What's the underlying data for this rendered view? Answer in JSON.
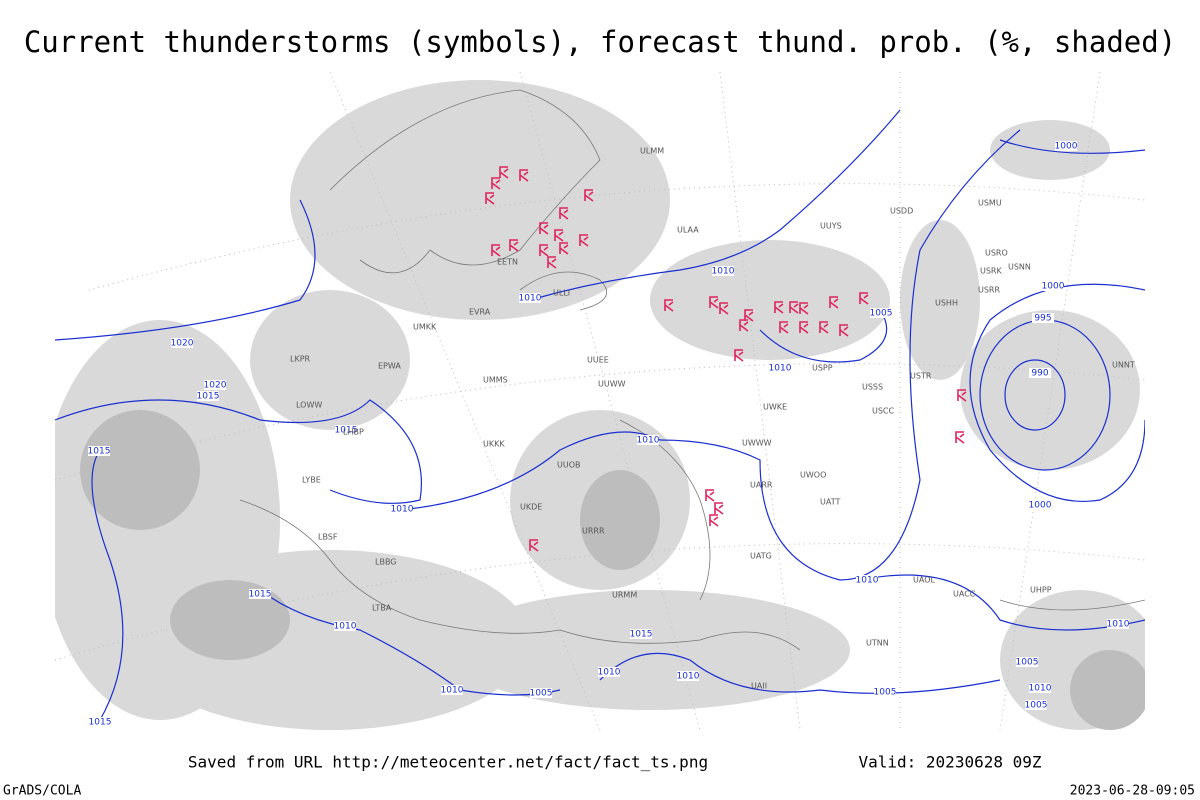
{
  "title": "Current thunderstorms (symbols), forecast thund. prob. (%, shaded)",
  "footer": {
    "source": "Saved from URL http://meteocenter.net/fact/fact_ts.png",
    "valid": "Valid: 20230628 09Z",
    "software": "GrADS/COLA",
    "timestamp": "2023-06-28-09:05"
  },
  "isobar_labels": [
    "1020",
    "1020",
    "1015",
    "1015",
    "1015",
    "1010",
    "1010",
    "1010",
    "1010",
    "1010",
    "1005",
    "1000",
    "995",
    "990",
    "1000",
    "1000",
    "1015",
    "1010",
    "1015",
    "1010",
    "1010",
    "1010",
    "1005",
    "1015",
    "1010",
    "1005",
    "1010",
    "1005",
    "1010",
    "1005"
  ],
  "stations": [
    "ULMM",
    "ULAA",
    "USDD",
    "UUYS",
    "USMU",
    "USRO",
    "USRK",
    "USNN",
    "USRR",
    "USHH",
    "USTR",
    "USSS",
    "USCC",
    "USPP",
    "UWKE",
    "UWWW",
    "UARR",
    "UWOO",
    "UATT",
    "UATG",
    "UAOL",
    "UACC",
    "UTNN",
    "UUEE",
    "UUWW",
    "UMMS",
    "UMKK",
    "EVRA",
    "ULLI",
    "EETN",
    "LKPR",
    "EPWA",
    "LOWW",
    "LHBP",
    "LYBE",
    "LBSF",
    "LBBG",
    "LTBA",
    "UKKK",
    "UUOB",
    "UKDE",
    "URRR",
    "URMM",
    "UAII",
    "UNNT",
    "UHPP"
  ]
}
